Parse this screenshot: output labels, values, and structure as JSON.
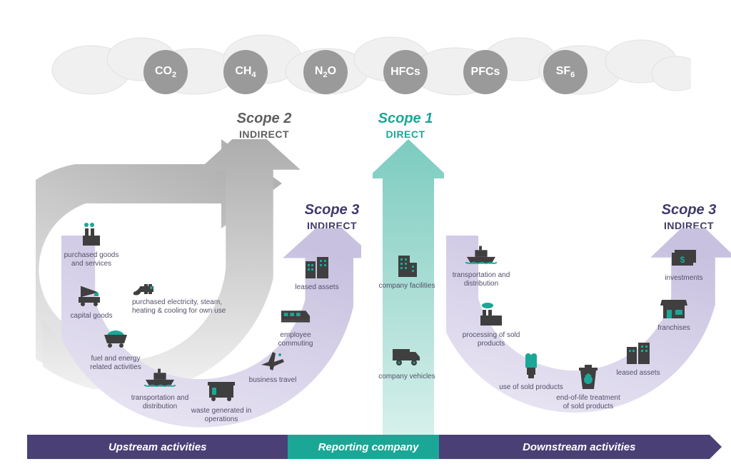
{
  "colors": {
    "gas_circle": "#9a9a9a",
    "gas_text": "#ffffff",
    "cloud_fill": "#f0f0f0",
    "cloud_stroke": "#e2e2e2",
    "scope1_arrow": "#7ccbbf",
    "scope1_text": "#1aa796",
    "scope2_arrow_light": "#d6d6d6",
    "scope2_arrow_dark": "#a9a9a9",
    "scope2_text": "#5e5e5e",
    "scope3_arrow": "#c8c1e0",
    "scope3_text": "#403a6b",
    "icon_dark": "#3f3f3f",
    "icon_accent": "#1aa796",
    "caption": "#53506a",
    "banner_purple": "#4a4076",
    "banner_teal": "#1aa796"
  },
  "gases": [
    {
      "html": "CO<sub>2</sub>"
    },
    {
      "html": "CH<sub>4</sub>"
    },
    {
      "html": "N<sub>2</sub>O"
    },
    {
      "html": "HFCs"
    },
    {
      "html": "PFCs"
    },
    {
      "html": "SF<sub>6</sub>"
    }
  ],
  "scopes": {
    "s1": {
      "title": "Scope 1",
      "sub": "DIRECT"
    },
    "s2": {
      "title": "Scope 2",
      "sub": "INDIRECT"
    },
    "s3l": {
      "title": "Scope 3",
      "sub": "INDIRECT"
    },
    "s3r": {
      "title": "Scope 3",
      "sub": "INDIRECT"
    }
  },
  "scope1_items": {
    "facilities": "company facilities",
    "vehicles": "company vehicles"
  },
  "scope2_item": "purchased electricity, steam, heating & cooling for own use",
  "upstream": {
    "purchased_goods": "purchased goods and services",
    "capital_goods": "capital goods",
    "fuel_energy": "fuel and energy related activities",
    "transport": "transportation and distribution",
    "waste": "waste generated in operations",
    "business_travel": "business travel",
    "commuting": "employee commuting",
    "leased_assets": "leased assets"
  },
  "downstream": {
    "transport": "transportation and distribution",
    "processing": "processing of sold products",
    "use": "use of sold products",
    "eol": "end-of-life treatment of sold products",
    "leased_assets": "leased assets",
    "franchises": "franchises",
    "investments": "investments"
  },
  "banner": {
    "upstream": "Upstream activities",
    "reporting": "Reporting company",
    "downstream": "Downstream activities"
  }
}
